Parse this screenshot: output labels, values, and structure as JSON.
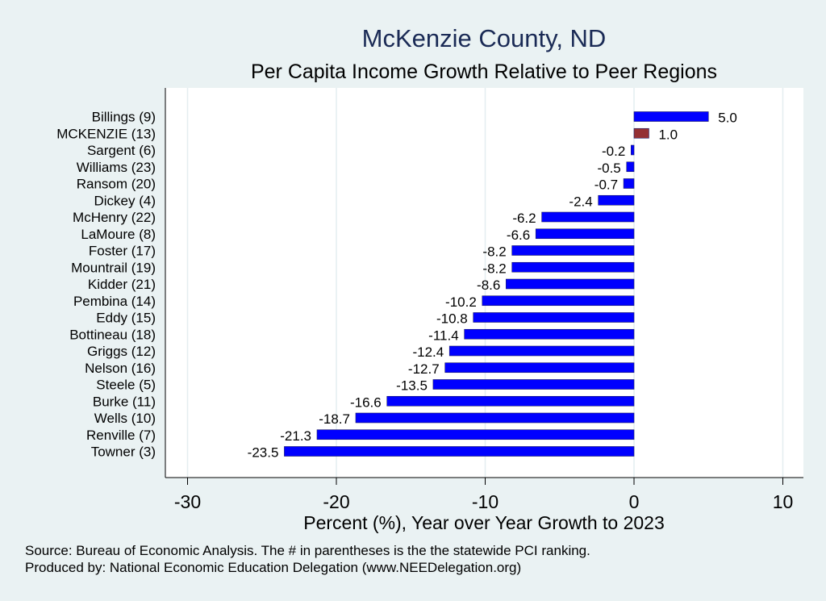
{
  "chart_data": {
    "type": "bar",
    "orientation": "horizontal",
    "title": "McKenzie County, ND",
    "subtitle": "Per Capita Income Growth Relative to Peer Regions",
    "xlabel": "Percent (%), Year over Year Growth to 2023",
    "ylabel": "",
    "xlim": [
      -31,
      10.6
    ],
    "xticks": [
      -30,
      -20,
      -10,
      0,
      10
    ],
    "grid": true,
    "categories": [
      "Billings  (9)",
      "MCKENZIE (13)",
      "Sargent  (6)",
      "Williams (23)",
      "Ransom (20)",
      "Dickey  (4)",
      "McHenry (22)",
      "LaMoure  (8)",
      "Foster (17)",
      "Mountrail (19)",
      "Kidder (21)",
      "Pembina (14)",
      "Eddy (15)",
      "Bottineau (18)",
      "Griggs (12)",
      "Nelson (16)",
      "Steele  (5)",
      "Burke (11)",
      "Wells (10)",
      "Renville  (7)",
      "Towner  (3)"
    ],
    "values": [
      5.0,
      1.0,
      -0.2,
      -0.5,
      -0.7,
      -2.4,
      -6.2,
      -6.6,
      -8.2,
      -8.2,
      -8.6,
      -10.2,
      -10.8,
      -11.4,
      -12.4,
      -12.7,
      -13.5,
      -16.6,
      -18.7,
      -21.3,
      -23.5
    ],
    "value_labels": [
      "5.0",
      "1.0",
      "-0.2",
      "-0.5",
      "-0.7",
      "-2.4",
      "-6.2",
      "-6.6",
      "-8.2",
      "-8.2",
      "-8.6",
      "-10.2",
      "-10.8",
      "-11.4",
      "-12.4",
      "-12.7",
      "-13.5",
      "-16.6",
      "-18.7",
      "-21.3",
      "-23.5"
    ],
    "highlight": "MCKENZIE (13)",
    "colors": {
      "bar": "#0000ff",
      "highlight": "#943034",
      "title": "#1a2a55",
      "background": "#eaf2f3",
      "plot": "#ffffff",
      "grid": "#e4eef0"
    }
  },
  "footer": {
    "source": "Source: Bureau of Economic Analysis. The # in parentheses is the the statewide PCI ranking.",
    "produced_by": "Produced by: National Economic Education Delegation (www.NEEDelegation.org)"
  }
}
